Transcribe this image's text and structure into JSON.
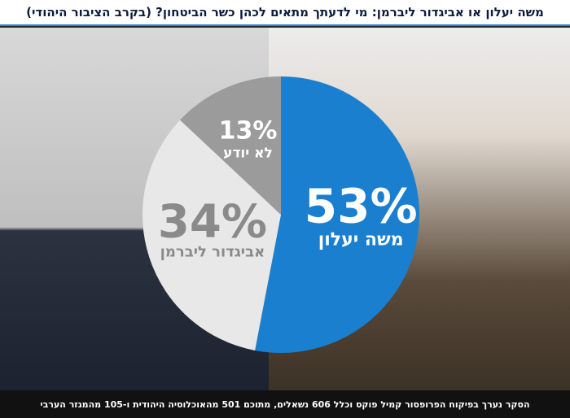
{
  "header": {
    "title": "משה יעלון או אביגדור ליברמן: מי לדעתך מתאים לכהן כשר הביטחון? (בקרב הציבור היהודי)"
  },
  "footer": {
    "note": "הסקר נערך בפיקוח הפרופסור קמיל פוקס וכלל 606 נשאלים, מתוכם 501 מהאוכלוסיה היהודית ו-105 מהמגזר הערבי"
  },
  "colors": {
    "yaalon": "#1a7fcf",
    "liberman": "#e8e8e8",
    "unknown": "#9b9b9b",
    "text_light": "#ffffff",
    "text_dark": "#8a8a8a"
  },
  "chart_data": {
    "type": "pie",
    "title": "משה יעלון או אביגדור ליברמן: מי לדעתך מתאים לכהן כשר הביטחון? (בקרב הציבור היהודי)",
    "slices": [
      {
        "label": "משה יעלון",
        "value": 53,
        "display": "53%",
        "color": "#1a7fcf"
      },
      {
        "label": "אביגדור ליברמן",
        "value": 34,
        "display": "34%",
        "color": "#e8e8e8"
      },
      {
        "label": "לא יודע",
        "value": 13,
        "display": "13%",
        "color": "#9b9b9b"
      }
    ]
  }
}
